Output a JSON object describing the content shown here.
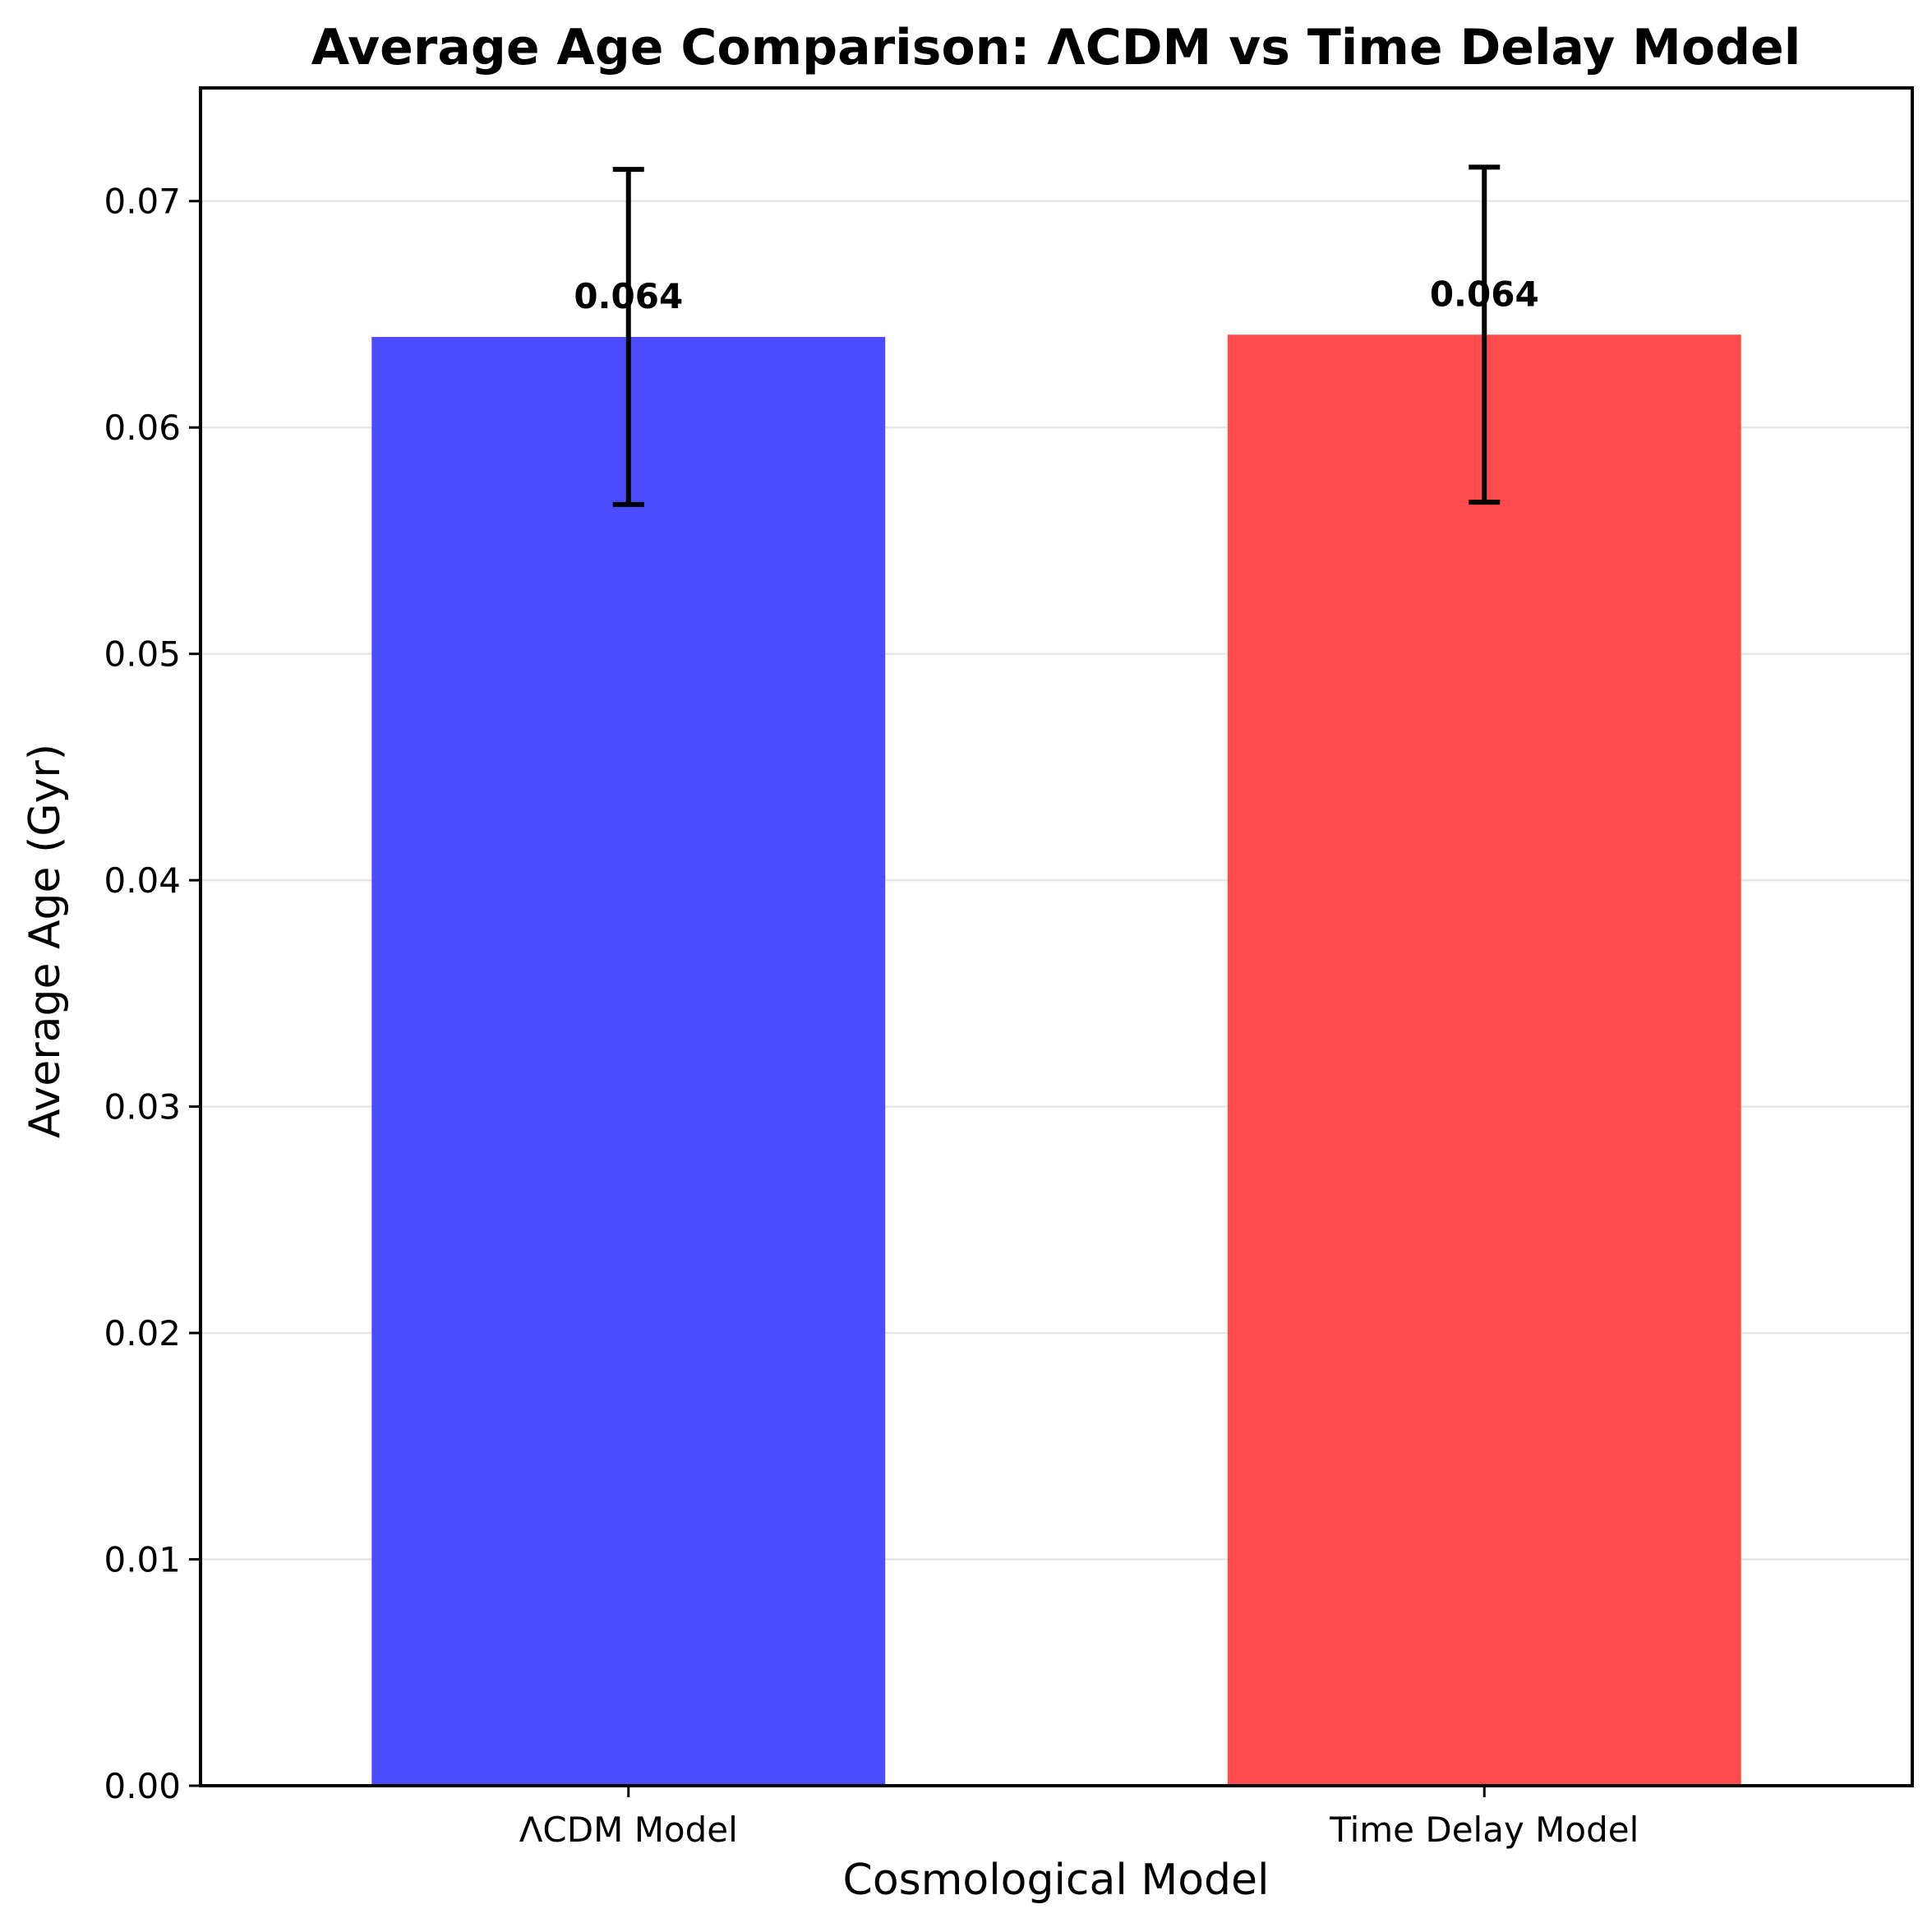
{
  "chart_data": {
    "type": "bar",
    "title": "Average Age Comparison: ΛCDM vs Time Delay Model",
    "xlabel": "Cosmological Model",
    "ylabel": "Average Age (Gyr)",
    "categories": [
      "ΛCDM Model",
      "Time Delay Model"
    ],
    "values": [
      0.064,
      0.0641
    ],
    "errors": [
      0.0074,
      0.0074
    ],
    "data_labels": [
      "0.064",
      "0.064"
    ],
    "colors": [
      "#4b4bff",
      "#ff4b4b"
    ],
    "ylim": [
      0,
      0.075
    ],
    "yticks": [
      0.0,
      0.01,
      0.02,
      0.03,
      0.04,
      0.05,
      0.06,
      0.07
    ],
    "ytick_labels": [
      "0.00",
      "0.01",
      "0.02",
      "0.03",
      "0.04",
      "0.05",
      "0.06",
      "0.07"
    ],
    "grid": "y",
    "legend": "none"
  }
}
